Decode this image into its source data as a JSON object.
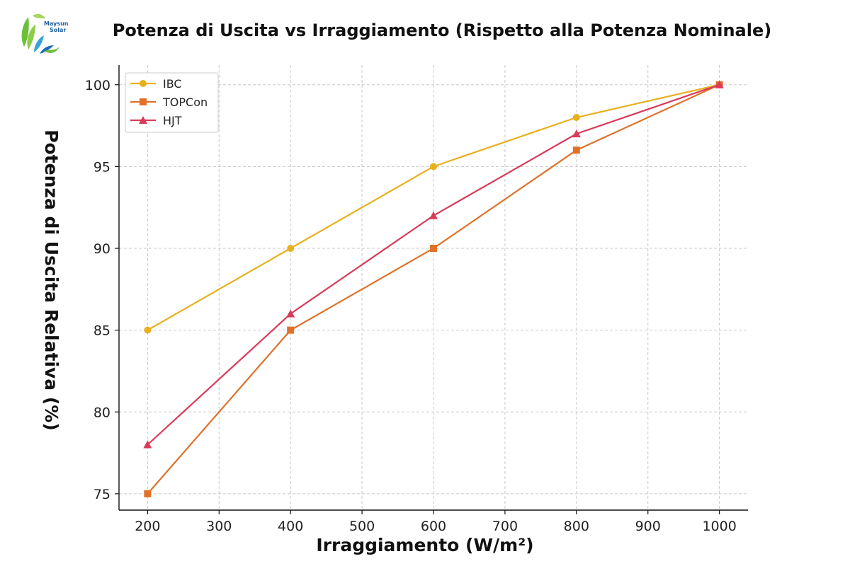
{
  "logo": {
    "line1": "Maysun",
    "line2": "Solar"
  },
  "chart_data": {
    "type": "line",
    "title": "Potenza di Uscita vs Irraggiamento (Rispetto alla Potenza Nominale)",
    "xlabel": "Irraggiamento (W/m²)",
    "ylabel": "Potenza di Uscita Relativa (%)",
    "xlim": [
      160,
      1040
    ],
    "ylim": [
      74,
      101.2
    ],
    "xticks": [
      200,
      300,
      400,
      500,
      600,
      700,
      800,
      900,
      1000
    ],
    "yticks": [
      75,
      80,
      85,
      90,
      95,
      100
    ],
    "grid": true,
    "legend": "top-left",
    "x": [
      200,
      400,
      600,
      800,
      1000
    ],
    "series": [
      {
        "name": "IBC",
        "values": [
          85,
          90,
          95,
          98,
          100
        ],
        "color": "#e8b01e",
        "marker": "circle"
      },
      {
        "name": "TOPCon",
        "values": [
          75,
          85,
          90,
          96,
          100
        ],
        "color": "#e07128",
        "marker": "square"
      },
      {
        "name": "HJT",
        "values": [
          78,
          86,
          92,
          97,
          100
        ],
        "color": "#d93a5a",
        "marker": "triangle"
      }
    ]
  }
}
